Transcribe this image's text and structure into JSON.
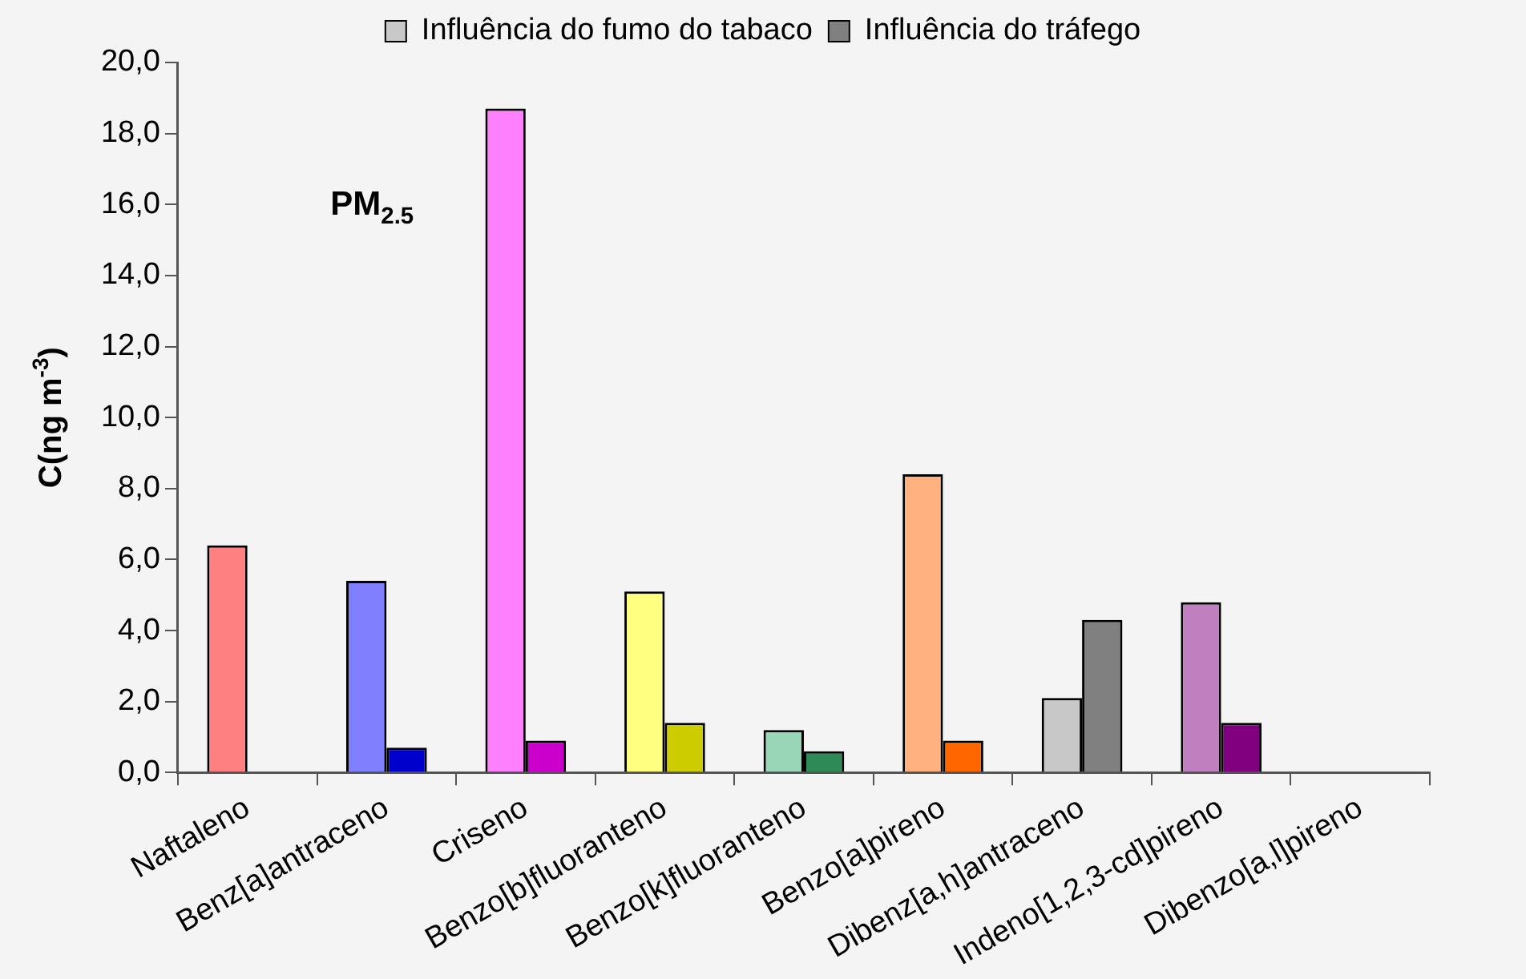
{
  "chart_data": {
    "type": "bar",
    "ylabel": "C(ng m$^{-3}$)",
    "annotations": [
      "PM$_{2.5}$"
    ],
    "categories": [
      "Naftaleno",
      "Benz[a]antraceno",
      "Criseno",
      "Benzo[b]fluoranteno",
      "Benzo[k]fluoranteno",
      "Benzo[a]pireno",
      "Dibenz[a,h]antraceno",
      "Indeno[1,2,3-cd]pireno",
      "Dibenzo[a,l]pireno"
    ],
    "series": [
      {
        "name": "Influência do fumo do tabaco",
        "color": "#c8c8c8",
        "colors": [
          "#ff8080",
          "#8080ff",
          "#ff80ff",
          "#ffff80",
          "#99d6b8",
          "#ffb27f",
          "#c8c8c8",
          "#c080c0",
          "#c8c8c8"
        ],
        "values": [
          6.4,
          5.4,
          18.7,
          5.1,
          1.2,
          8.4,
          2.1,
          4.8,
          null
        ]
      },
      {
        "name": "Influência do tráfego",
        "color": "#808080",
        "colors": [
          "#808080",
          "#0000cc",
          "#cc00cc",
          "#cccc00",
          "#2e8b57",
          "#ff6600",
          "#808080",
          "#800080",
          "#808080"
        ],
        "values": [
          null,
          0.7,
          0.9,
          1.4,
          0.6,
          0.9,
          4.3,
          1.4,
          null
        ]
      }
    ],
    "ylim": [
      0,
      20
    ],
    "yticks": [
      {
        "value": 0,
        "label": "0,0"
      },
      {
        "value": 2,
        "label": "2,0"
      },
      {
        "value": 4,
        "label": "4,0"
      },
      {
        "value": 6,
        "label": "6,0"
      },
      {
        "value": 8,
        "label": "8,0"
      },
      {
        "value": 10,
        "label": "10,0"
      },
      {
        "value": 12,
        "label": "12,0"
      },
      {
        "value": 14,
        "label": "14,0"
      },
      {
        "value": 16,
        "label": "16,0"
      },
      {
        "value": 18,
        "label": "18,0"
      },
      {
        "value": 20,
        "label": "20,0"
      }
    ],
    "grid": false,
    "legend": "top"
  }
}
